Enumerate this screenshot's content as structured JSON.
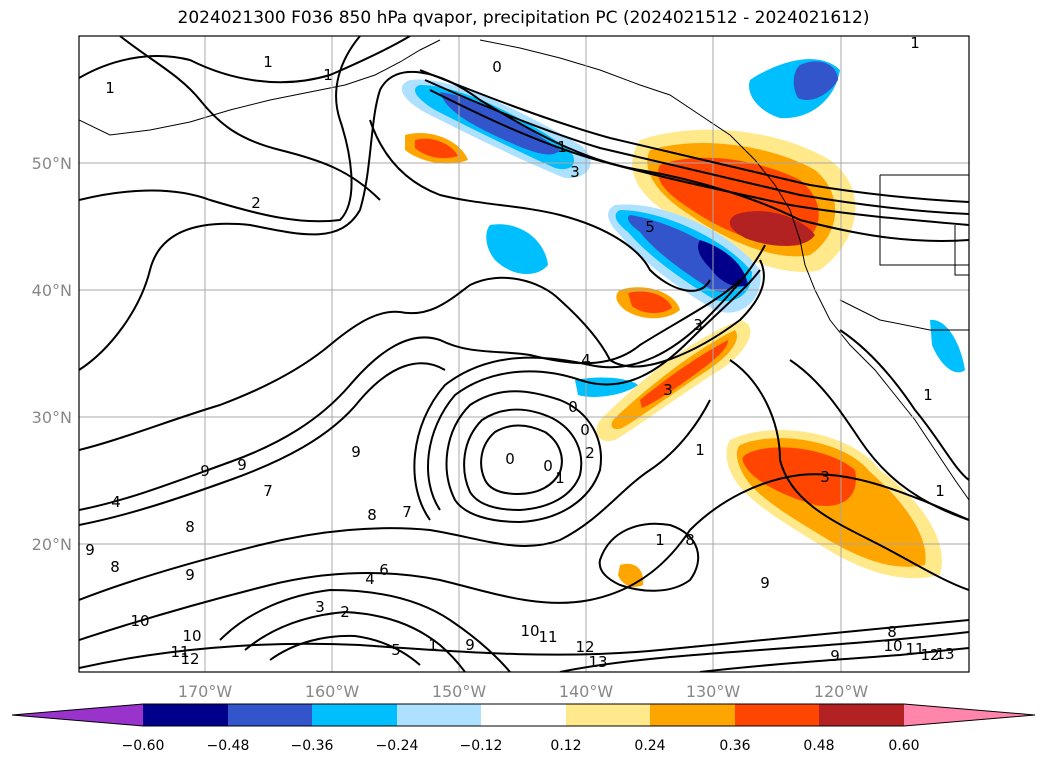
{
  "title": "2024021300 F036 850 hPa qvapor, precipitation PC (2024021512 - 2024021612)",
  "map": {
    "lon_labels": [
      "170°W",
      "160°W",
      "150°W",
      "140°W",
      "130°W",
      "120°W"
    ],
    "lat_labels": [
      "50°N",
      "40°N",
      "30°N",
      "20°N"
    ]
  },
  "colorbar": {
    "tick_labels": [
      "−0.60",
      "−0.48",
      "−0.36",
      "−0.24",
      "−0.12",
      "0.12",
      "0.24",
      "0.36",
      "0.48",
      "0.60"
    ],
    "colors": [
      "#9933cc",
      "#00008b",
      "#3355cc",
      "#00bfff",
      "#aee0ff",
      "#ffffff",
      "#ffe98a",
      "#ffa500",
      "#ff4500",
      "#b22222",
      "#ff85ab"
    ]
  },
  "contour_labels": [
    "1",
    "1",
    "1",
    "1",
    "0",
    "2",
    "1",
    "3",
    "5",
    "3",
    "4",
    "0",
    "0",
    "0",
    "0",
    "1",
    "2",
    "3",
    "1",
    "9",
    "9",
    "8",
    "7",
    "7",
    "8",
    "9",
    "9",
    "9",
    "8",
    "10",
    "10",
    "11",
    "12",
    "2",
    "3",
    "4",
    "6",
    "5",
    "1",
    "9",
    "10",
    "11",
    "12",
    "13",
    "1",
    "8",
    "9",
    "9",
    "8",
    "10",
    "11",
    "12",
    "13",
    "3",
    "1",
    "1",
    "4"
  ]
}
